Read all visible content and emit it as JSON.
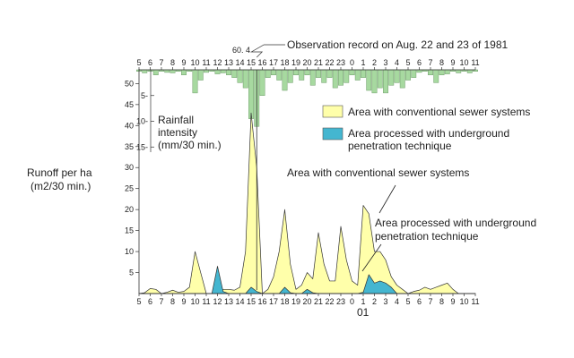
{
  "chart_data": {
    "type": "area",
    "title": "Observation record on Aug. 22 and 23 of 1981",
    "peak_annotation": "60. 4",
    "xlabel": "",
    "ylabel": [
      "Runoff per ha",
      "(m2/30 min.)"
    ],
    "ylim": [
      0,
      52
    ],
    "yticks": [
      5,
      10,
      15,
      20,
      25,
      30,
      35,
      40,
      45,
      50
    ],
    "x_ticks_bottom": [
      "5",
      "6",
      "7",
      "8",
      "9",
      "10",
      "11",
      "12",
      "13",
      "14",
      "15",
      "16",
      "17",
      "18",
      "19",
      "20",
      "21",
      "22",
      "23",
      "0",
      "1",
      "2",
      "3",
      "4",
      "5",
      "6",
      "7",
      "8",
      "9",
      "10",
      "11"
    ],
    "x_ticks_top": [
      "5",
      "6",
      "7",
      "8",
      "9",
      "10",
      "11",
      "12",
      "13",
      "14",
      "15",
      "16",
      "17",
      "18",
      "19",
      "20",
      "21",
      "22",
      "23",
      "0",
      "1",
      "2",
      "3",
      "4",
      "5",
      "6",
      "7",
      "8",
      "9",
      "10",
      "11"
    ],
    "x_date_label": "01",
    "rainfall": {
      "label": [
        "Rainfall",
        "intensity",
        "(mm/30 min.)"
      ],
      "ticks": [
        5,
        10,
        15
      ],
      "ylim": [
        0,
        16
      ],
      "x": [
        5,
        5.5,
        6,
        6.5,
        7,
        7.5,
        8,
        8.5,
        9,
        9.5,
        10,
        10.5,
        11,
        11.5,
        12,
        12.5,
        13,
        13.5,
        14,
        14.5,
        15,
        15.5,
        16,
        16.5,
        17,
        17.5,
        18,
        18.5,
        19,
        19.5,
        20,
        20.5,
        21,
        21.5,
        22,
        22.5,
        23,
        23.5,
        24,
        24.5,
        25,
        25.5,
        26,
        26.5,
        27,
        27.5,
        28,
        28.5,
        29,
        29.5,
        30,
        30.5,
        31,
        31.5,
        32,
        32.5,
        33,
        33.5,
        34,
        34.5,
        35
      ],
      "values": [
        0.3,
        0.6,
        0.3,
        1.0,
        0.3,
        0.5,
        0.6,
        0.3,
        1.0,
        0.3,
        4.5,
        2.0,
        0.5,
        0.3,
        0.8,
        0.6,
        1.0,
        1.5,
        2.5,
        3.5,
        9.5,
        11.0,
        5.0,
        1.5,
        1.0,
        2.0,
        4.0,
        2.5,
        1.0,
        2.0,
        1.0,
        3.0,
        1.5,
        2.5,
        1.5,
        3.5,
        3.0,
        2.5,
        1.0,
        2.0,
        1.5,
        4.0,
        4.5,
        3.5,
        4.5,
        3.0,
        2.5,
        3.5,
        2.0,
        1.5,
        0.5,
        0.3,
        1.0,
        2.5,
        1.0,
        0.8,
        0.3,
        0.6,
        0.3,
        0.6,
        0.3
      ],
      "peak": 60.4
    },
    "series": [
      {
        "name": "Area with conventional sewer systems",
        "color": "#ffffaa",
        "x": [
          5,
          5.5,
          6,
          6.5,
          7,
          7.5,
          8,
          8.5,
          9,
          9.5,
          10,
          10.5,
          11,
          11.5,
          12,
          12.5,
          13,
          13.5,
          14,
          14.5,
          15,
          15.5,
          16,
          16.5,
          17,
          17.5,
          18,
          18.5,
          19,
          19.5,
          20,
          20.5,
          21,
          21.5,
          22,
          22.5,
          23,
          23.5,
          24,
          24.5,
          25,
          25.5,
          26,
          26.5,
          27,
          27.5,
          28,
          28.5,
          29,
          29.5,
          30,
          30.5,
          31,
          31.5,
          32,
          32.5,
          33,
          33.5,
          34,
          34.5,
          35
        ],
        "values": [
          0,
          0.2,
          1.2,
          1.0,
          0,
          0.3,
          0.8,
          0.3,
          0.5,
          1.5,
          10,
          5,
          0,
          0,
          1,
          1,
          1,
          0.8,
          1.5,
          10,
          43,
          30,
          0,
          1,
          4,
          10,
          20,
          7,
          1,
          2,
          5,
          3.5,
          14.5,
          7,
          3,
          3,
          16,
          8,
          3,
          2,
          21,
          19,
          10,
          10,
          8,
          4,
          2,
          1,
          0,
          0.5,
          0.8,
          1.5,
          1,
          1.5,
          2,
          2.5,
          1,
          0,
          0,
          0,
          0
        ]
      },
      {
        "name": "Area processed with underground penetration technique",
        "color": "#44b6d0",
        "x": [
          5,
          5.5,
          6,
          6.5,
          7,
          7.5,
          8,
          8.5,
          9,
          9.5,
          10,
          10.5,
          11,
          11.5,
          12,
          12.5,
          13,
          13.5,
          14,
          14.5,
          15,
          15.5,
          16,
          16.5,
          17,
          17.5,
          18,
          18.5,
          19,
          19.5,
          20,
          20.5,
          21,
          21.5,
          22,
          22.5,
          23,
          23.5,
          24,
          24.5,
          25,
          25.5,
          26,
          26.5,
          27,
          27.5,
          28,
          28.5,
          29,
          29.5,
          30,
          30.5,
          31,
          31.5,
          32,
          32.5,
          33,
          33.5,
          34,
          34.5,
          35
        ],
        "values": [
          0,
          0,
          0,
          0,
          0,
          0,
          0,
          0,
          0,
          0,
          0,
          0,
          0,
          0,
          6.5,
          0.5,
          0,
          0,
          0,
          0,
          1.5,
          0.5,
          0,
          0,
          0,
          0,
          1.5,
          0.2,
          0,
          0,
          1.0,
          0.2,
          0,
          0,
          0,
          0,
          0,
          0,
          0,
          0,
          0.3,
          4.5,
          2.5,
          3,
          2.5,
          1.5,
          0,
          0,
          0,
          0,
          0,
          0,
          0,
          0,
          0,
          0,
          0,
          0,
          0,
          0,
          0
        ]
      }
    ],
    "legend": [
      {
        "label": "Area with conventional sewer systems",
        "color": "#ffffaa"
      },
      {
        "label": "Area processed with underground",
        "label2": "penetration technique",
        "color": "#44b6d0"
      }
    ],
    "annotations": {
      "conventional": "Area with conventional sewer systems",
      "underground_line1": "Area processed with underground",
      "underground_line2": "penetration technique"
    }
  }
}
